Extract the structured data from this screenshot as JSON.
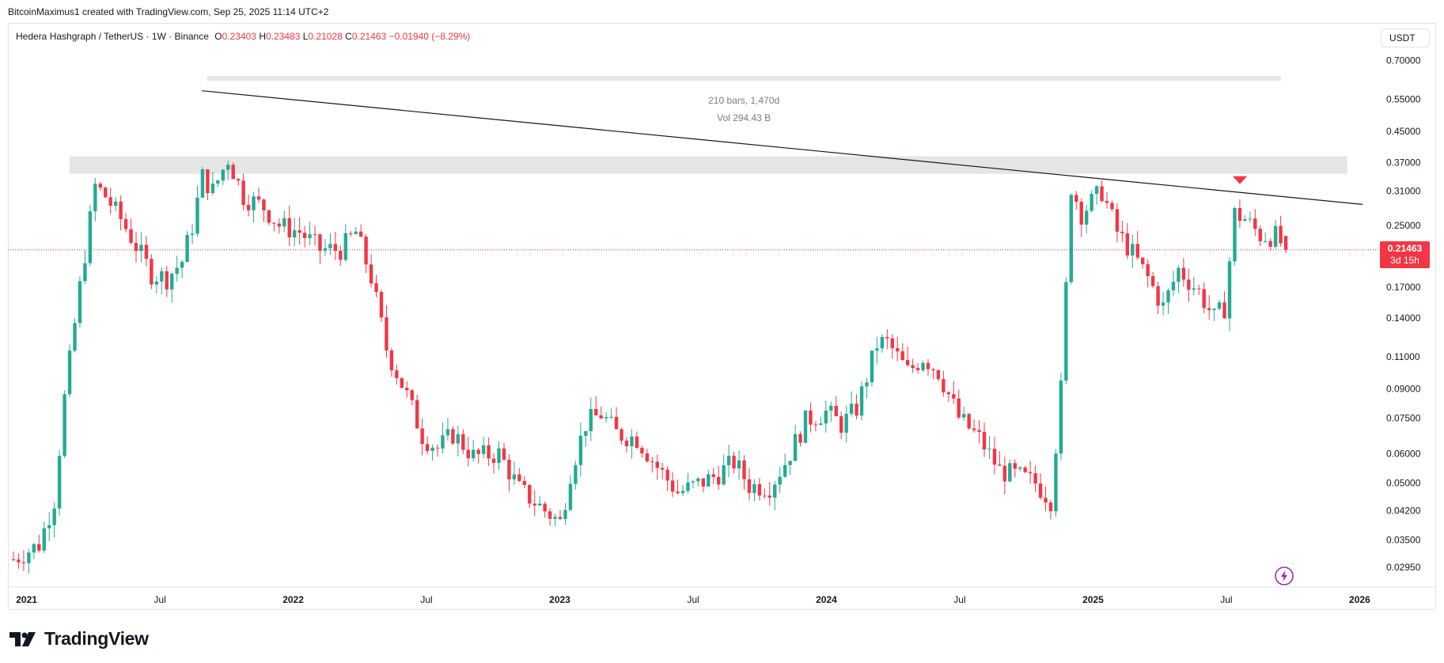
{
  "attribution": "BitcoinMaximus1 created with TradingView.com, Sep 25, 2025 11:14 UTC+2",
  "symbol": {
    "name": "Hedera Hashgraph / TetherUS · 1W · Binance",
    "open_label": "O",
    "open": "0.23403",
    "high_label": "H",
    "high": "0.23483",
    "low_label": "L",
    "low": "0.21028",
    "close_label": "C",
    "close": "0.21463",
    "change": "−0.01940 (−8.29%)"
  },
  "currency": "USDT",
  "price_tag": {
    "price": "0.21463",
    "countdown": "3d 15h"
  },
  "measure": {
    "bars": "210 bars, 1,470d",
    "vol": "Vol 294.43 B"
  },
  "logo_text": "TradingView",
  "colors": {
    "up": "#22ab94",
    "down": "#f23645",
    "text": "#131722",
    "zone": "#e0e0e0",
    "grid_border": "#e0e3eb"
  },
  "chart_data": {
    "type": "candlestick",
    "title": "Hedera Hashgraph / TetherUS · 1W · Binance",
    "scale": "log",
    "ylim": [
      0.027,
      0.76
    ],
    "y_ticks": [
      "0.70000",
      "0.55000",
      "0.45000",
      "0.37000",
      "0.31000",
      "0.25000",
      "0.17000",
      "0.14000",
      "0.11000",
      "0.09000",
      "0.07500",
      "0.06000",
      "0.05000",
      "0.04200",
      "0.03500",
      "0.02950"
    ],
    "x_ticks": [
      "2021",
      "Jul",
      "2022",
      "Jul",
      "2023",
      "Jul",
      "2024",
      "Jul",
      "2025",
      "Jul",
      "2026"
    ],
    "x_tick_years": [
      2021.0,
      2021.5,
      2022.0,
      2022.5,
      2023.0,
      2023.5,
      2024.0,
      2024.5,
      2025.0,
      2025.5,
      2026.0
    ],
    "xlim": [
      2020.93,
      2026.07
    ],
    "last_price": 0.21463,
    "resistance_zone": [
      0.345,
      0.385
    ],
    "trendline": {
      "from": [
        "2021-08-29",
        0.58
      ],
      "to": [
        "2026-01-05",
        0.285
      ]
    },
    "signal": {
      "date": "2025-07-21",
      "price": 0.33,
      "direction": "down"
    },
    "measure_range": [
      "2021-09-05",
      "2025-09-15"
    ],
    "anchors": [
      [
        "2020-12-14",
        0.031
      ],
      [
        "2021-01-18",
        0.034
      ],
      [
        "2021-02-08",
        0.045
      ],
      [
        "2021-02-22",
        0.085
      ],
      [
        "2021-03-15",
        0.17
      ],
      [
        "2021-04-05",
        0.32
      ],
      [
        "2021-04-19",
        0.3
      ],
      [
        "2021-05-10",
        0.26
      ],
      [
        "2021-05-31",
        0.22
      ],
      [
        "2021-06-21",
        0.185
      ],
      [
        "2021-07-12",
        0.18
      ],
      [
        "2021-08-02",
        0.2
      ],
      [
        "2021-08-16",
        0.25
      ],
      [
        "2021-08-30",
        0.34
      ],
      [
        "2021-09-13",
        0.31
      ],
      [
        "2021-10-04",
        0.38
      ],
      [
        "2021-10-25",
        0.3
      ],
      [
        "2021-11-22",
        0.28
      ],
      [
        "2021-12-13",
        0.25
      ],
      [
        "2022-01-10",
        0.24
      ],
      [
        "2022-02-07",
        0.215
      ],
      [
        "2022-03-07",
        0.215
      ],
      [
        "2022-03-28",
        0.24
      ],
      [
        "2022-04-18",
        0.18
      ],
      [
        "2022-05-09",
        0.115
      ],
      [
        "2022-06-06",
        0.086
      ],
      [
        "2022-06-27",
        0.067
      ],
      [
        "2022-07-18",
        0.062
      ],
      [
        "2022-08-08",
        0.068
      ],
      [
        "2022-09-05",
        0.059
      ],
      [
        "2022-10-10",
        0.06
      ],
      [
        "2022-11-07",
        0.048
      ],
      [
        "2022-12-12",
        0.042
      ],
      [
        "2023-01-02",
        0.039
      ],
      [
        "2023-01-16",
        0.054
      ],
      [
        "2023-02-06",
        0.073
      ],
      [
        "2023-02-27",
        0.077
      ],
      [
        "2023-03-20",
        0.068
      ],
      [
        "2023-04-17",
        0.066
      ],
      [
        "2023-05-15",
        0.055
      ],
      [
        "2023-06-12",
        0.047
      ],
      [
        "2023-07-03",
        0.049
      ],
      [
        "2023-07-31",
        0.052
      ],
      [
        "2023-08-28",
        0.057
      ],
      [
        "2023-09-18",
        0.049
      ],
      [
        "2023-10-16",
        0.049
      ],
      [
        "2023-11-06",
        0.057
      ],
      [
        "2023-12-04",
        0.074
      ],
      [
        "2024-01-01",
        0.078
      ],
      [
        "2024-01-22",
        0.072
      ],
      [
        "2024-02-12",
        0.08
      ],
      [
        "2024-03-11",
        0.12
      ],
      [
        "2024-03-25",
        0.12
      ],
      [
        "2024-04-22",
        0.1
      ],
      [
        "2024-05-13",
        0.11
      ],
      [
        "2024-06-03",
        0.1
      ],
      [
        "2024-07-01",
        0.075
      ],
      [
        "2024-07-29",
        0.066
      ],
      [
        "2024-08-26",
        0.054
      ],
      [
        "2024-09-23",
        0.052
      ],
      [
        "2024-10-14",
        0.05
      ],
      [
        "2024-11-04",
        0.045
      ],
      [
        "2024-11-18",
        0.09
      ],
      [
        "2024-12-02",
        0.32
      ],
      [
        "2024-12-16",
        0.27
      ],
      [
        "2025-01-13",
        0.31
      ],
      [
        "2025-02-03",
        0.24
      ],
      [
        "2025-02-24",
        0.21
      ],
      [
        "2025-03-17",
        0.18
      ],
      [
        "2025-04-07",
        0.15
      ],
      [
        "2025-04-28",
        0.19
      ],
      [
        "2025-05-26",
        0.165
      ],
      [
        "2025-06-16",
        0.14
      ],
      [
        "2025-06-30",
        0.15
      ],
      [
        "2025-07-14",
        0.27
      ],
      [
        "2025-07-28",
        0.26
      ],
      [
        "2025-08-18",
        0.235
      ],
      [
        "2025-09-08",
        0.234
      ],
      [
        "2025-09-22",
        0.21463
      ]
    ]
  }
}
